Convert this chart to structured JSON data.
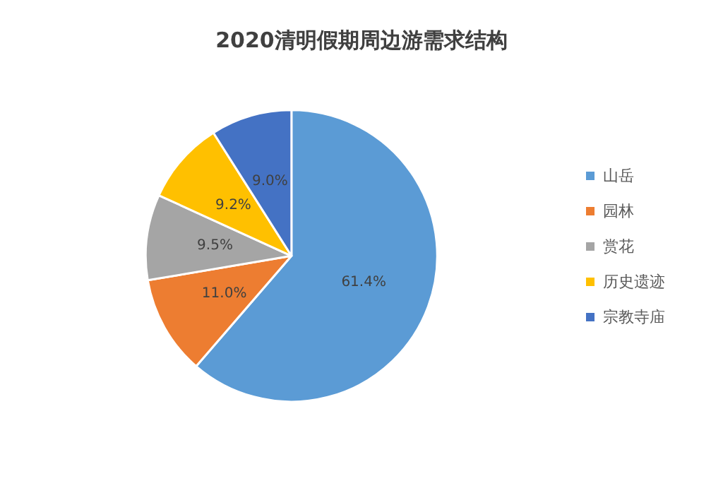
{
  "chart_data": {
    "type": "pie",
    "title": "2020清明假期周边游需求结构",
    "categories": [
      "山岳",
      "园林",
      "赏花",
      "历史遗迹",
      "宗教寺庙"
    ],
    "values": [
      61.4,
      11.0,
      9.5,
      9.2,
      9.0
    ],
    "value_labels": [
      "61.4%",
      "11.0%",
      "9.5%",
      "9.2%",
      "9.0%"
    ],
    "colors": [
      "#5b9bd5",
      "#ed7d31",
      "#a5a5a5",
      "#ffc000",
      "#4472c4"
    ],
    "legend": "right"
  }
}
